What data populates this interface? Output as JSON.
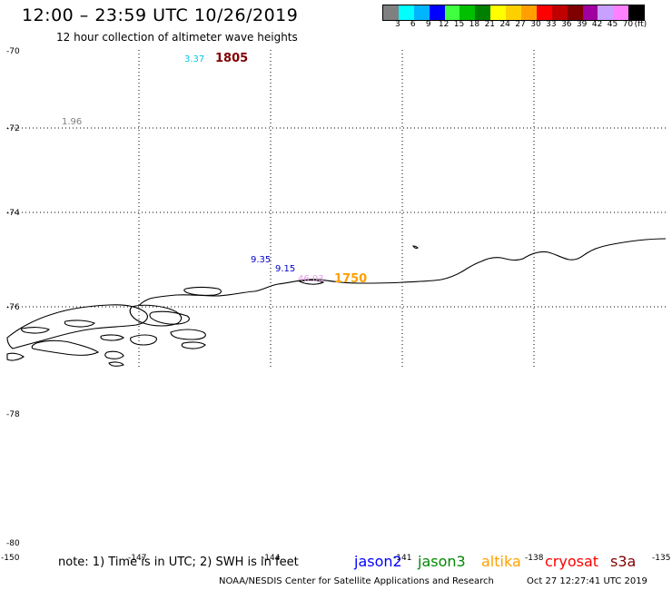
{
  "header": {
    "title": "12:00 – 23:59 UTC 10/26/2019",
    "subtitle": "12 hour collection of altimeter wave heights"
  },
  "legend": {
    "unit": "(ft)",
    "colors": [
      "#808080",
      "#00ffff",
      "#00b4ff",
      "#0000ff",
      "#40ff40",
      "#00c000",
      "#008000",
      "#ffff00",
      "#ffd000",
      "#ffa000",
      "#ff0000",
      "#c00000",
      "#800000",
      "#a000a0",
      "#c8a0ff",
      "#ff80ff",
      "#000000"
    ],
    "ticks": [
      "3",
      "6",
      "9",
      "12",
      "15",
      "18",
      "21",
      "24",
      "27",
      "30",
      "33",
      "36",
      "39",
      "42",
      "45",
      "70"
    ]
  },
  "map": {
    "lat_labels": [
      "-70",
      "-72",
      "-74",
      "-76",
      "-78",
      "-80"
    ],
    "lon_labels": [
      "-150",
      "-147",
      "-144",
      "-141",
      "-138",
      "-135"
    ],
    "annotations": [
      {
        "text": "3.37",
        "color": "#00c8e6"
      },
      {
        "text": "1805",
        "color": "#800000"
      },
      {
        "text": "1.96",
        "color": "#808080"
      },
      {
        "text": "9.35",
        "color": "#0000c8"
      },
      {
        "text": "9.15",
        "color": "#0000c8"
      },
      {
        "text": "46.03",
        "color": "#e89ee8"
      },
      {
        "text": "1750",
        "color": "#ffa000"
      }
    ]
  },
  "footer": {
    "note": "note: 1) Time is in UTC; 2) SWH is in feet",
    "satellites": [
      {
        "name": "jason2",
        "color": "#0000ff"
      },
      {
        "name": "jason3",
        "color": "#008800"
      },
      {
        "name": "altika",
        "color": "#ffa000"
      },
      {
        "name": "cryosat",
        "color": "#ff0000"
      },
      {
        "name": "s3a",
        "color": "#800000"
      }
    ],
    "credit": "NOAA/NESDIS Center for Satellite Applications and Research",
    "timestamp": "Oct 27 12:27:41 UTC 2019"
  }
}
